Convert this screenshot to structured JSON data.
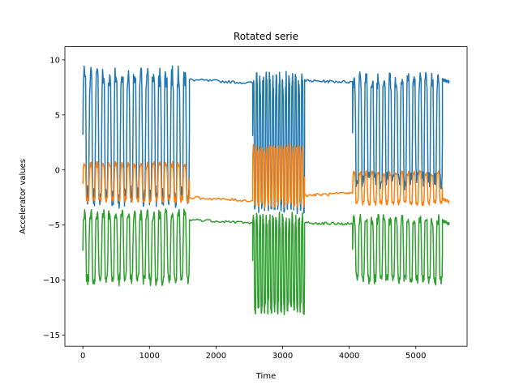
{
  "chart_data": {
    "type": "line",
    "title": "Rotated serie",
    "xlabel": "Time",
    "ylabel": "Accelerator values",
    "xlim": [
      -270,
      5770
    ],
    "ylim": [
      -16,
      11.2
    ],
    "xticks": [
      0,
      1000,
      2000,
      3000,
      4000,
      5000
    ],
    "yticks": [
      -15,
      -10,
      -5,
      0,
      5,
      10
    ],
    "xtick_labels": [
      "0",
      "1000",
      "2000",
      "3000",
      "4000",
      "5000"
    ],
    "ytick_labels": [
      "−15",
      "−10",
      "−5",
      "0",
      "5",
      "10"
    ],
    "grid": false,
    "legend": false,
    "series": [
      {
        "color": "#1f77b4",
        "segments": [
          {
            "x0": 0,
            "x1": 1600,
            "kind": "osc",
            "low": -2.5,
            "high": 8.5,
            "cycles": 17
          },
          {
            "x0": 1600,
            "x1": 2550,
            "kind": "flat",
            "from": 8.2,
            "to": 7.9
          },
          {
            "x0": 2550,
            "x1": 3330,
            "kind": "osc",
            "low": -3.0,
            "high": 8.0,
            "cycles": 16
          },
          {
            "x0": 3330,
            "x1": 4050,
            "kind": "flat",
            "from": 8.1,
            "to": 8.0
          },
          {
            "x0": 4050,
            "x1": 5400,
            "kind": "osc",
            "low": -1.0,
            "high": 8.3,
            "cycles": 15
          },
          {
            "x0": 5400,
            "x1": 5500,
            "kind": "flat",
            "from": 8.2,
            "to": 8.0
          }
        ]
      },
      {
        "color": "#ff7f0e",
        "segments": [
          {
            "x0": 0,
            "x1": 1600,
            "kind": "osc",
            "low": -2.7,
            "high": 0.5,
            "cycles": 17
          },
          {
            "x0": 1600,
            "x1": 2550,
            "kind": "flat",
            "from": -2.5,
            "to": -2.8
          },
          {
            "x0": 2550,
            "x1": 3330,
            "kind": "osc",
            "low": -3.0,
            "high": 2.0,
            "cycles": 16
          },
          {
            "x0": 3330,
            "x1": 4050,
            "kind": "flat",
            "from": -2.3,
            "to": -2.1
          },
          {
            "x0": 4050,
            "x1": 5400,
            "kind": "osc",
            "low": -3.0,
            "high": -0.3,
            "cycles": 15
          },
          {
            "x0": 5400,
            "x1": 5500,
            "kind": "flat",
            "from": -2.6,
            "to": -2.9
          }
        ]
      },
      {
        "color": "#2ca02c",
        "segments": [
          {
            "x0": 0,
            "x1": 1600,
            "kind": "osc",
            "low": -10.0,
            "high": -4.0,
            "cycles": 17
          },
          {
            "x0": 1600,
            "x1": 2550,
            "kind": "flat",
            "from": -4.5,
            "to": -4.8
          },
          {
            "x0": 2550,
            "x1": 3330,
            "kind": "osc",
            "low": -12.5,
            "high": -4.5,
            "cycles": 16
          },
          {
            "x0": 3330,
            "x1": 4050,
            "kind": "flat",
            "from": -4.8,
            "to": -4.9
          },
          {
            "x0": 4050,
            "x1": 5400,
            "kind": "osc",
            "low": -10.0,
            "high": -4.5,
            "cycles": 15
          },
          {
            "x0": 5400,
            "x1": 5500,
            "kind": "flat",
            "from": -4.6,
            "to": -4.9
          }
        ]
      }
    ]
  }
}
